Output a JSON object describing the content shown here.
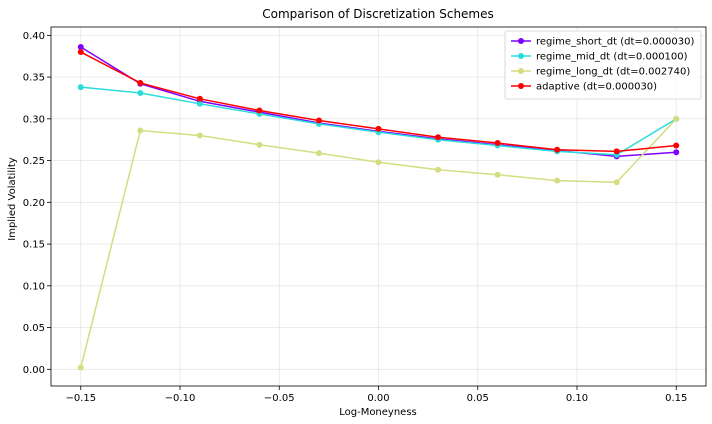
{
  "chart_data": {
    "type": "line",
    "title": "Comparison of Discretization Schemes",
    "xlabel": "Log-Moneyness",
    "ylabel": "Implied Volatility",
    "xlim": [
      -0.165,
      0.165
    ],
    "ylim": [
      -0.02,
      0.41
    ],
    "xticks": [
      -0.15,
      -0.1,
      -0.05,
      0.0,
      0.05,
      0.1,
      0.15
    ],
    "xtick_labels": [
      "−0.15",
      "−0.10",
      "−0.05",
      "0.00",
      "0.05",
      "0.10",
      "0.15"
    ],
    "yticks": [
      0.0,
      0.05,
      0.1,
      0.15,
      0.2,
      0.25,
      0.3,
      0.35,
      0.4
    ],
    "ytick_labels": [
      "0.00",
      "0.05",
      "0.10",
      "0.15",
      "0.20",
      "0.25",
      "0.30",
      "0.35",
      "0.40"
    ],
    "grid": true,
    "legend_position": "top-right",
    "x": [
      -0.15,
      -0.12,
      -0.09,
      -0.06,
      -0.03,
      0.0,
      0.03,
      0.06,
      0.09,
      0.12,
      0.15
    ],
    "series": [
      {
        "name": "regime_short_dt (dt=0.000030)",
        "color": "#7f00ff",
        "values": [
          0.386,
          0.342,
          0.321,
          0.308,
          0.295,
          0.285,
          0.276,
          0.269,
          0.262,
          0.255,
          0.26
        ]
      },
      {
        "name": "regime_mid_dt (dt=0.000100)",
        "color": "#2adddd",
        "values": [
          0.338,
          0.331,
          0.318,
          0.306,
          0.294,
          0.284,
          0.275,
          0.268,
          0.261,
          0.257,
          0.3
        ]
      },
      {
        "name": "regime_long_dt (dt=0.002740)",
        "color": "#d4dd80",
        "values": [
          0.002,
          0.286,
          0.28,
          0.269,
          0.259,
          0.248,
          0.239,
          0.233,
          0.226,
          0.224,
          0.3
        ]
      },
      {
        "name": "adaptive (dt=0.000030)",
        "color": "#ff0000",
        "values": [
          0.38,
          0.343,
          0.324,
          0.31,
          0.298,
          0.288,
          0.278,
          0.271,
          0.263,
          0.261,
          0.268
        ]
      }
    ]
  }
}
